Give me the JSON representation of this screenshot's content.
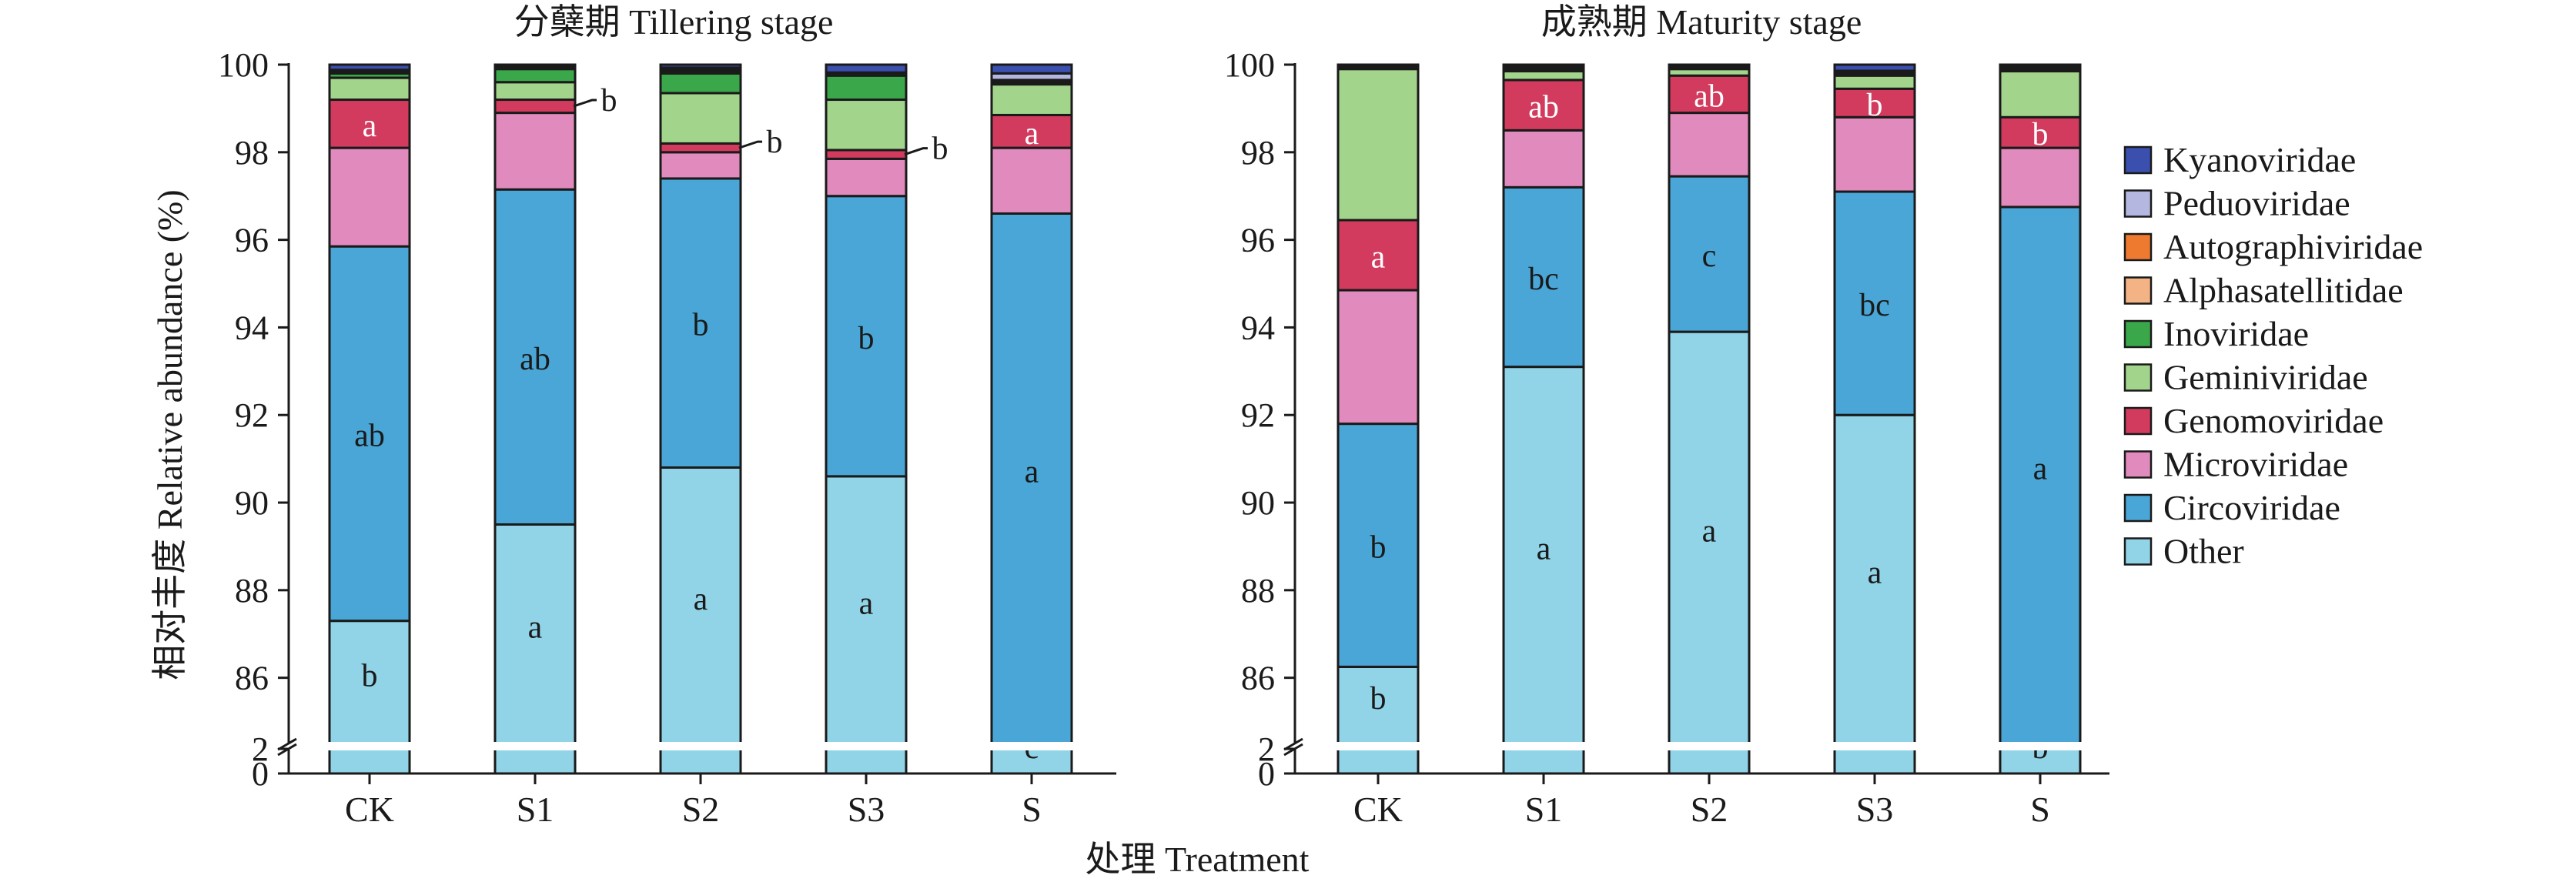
{
  "colors": {
    "Other": "#91d4e8",
    "Circoviridae": "#49a6d6",
    "Microviridae": "#e18abd",
    "Genomoviridae": "#d23a5e",
    "Geminiviridae": "#a2d48c",
    "Inoviridae": "#3aa84a",
    "Alphasatellitidae": "#f4b384",
    "Autographiviridae": "#ee7a30",
    "Peduoviridae": "#b4b7e0",
    "Kyanoviridae": "#3a4fae"
  },
  "legend": [
    "Kyanoviridae",
    "Peduoviridae",
    "Autographiviridae",
    "Alphasatellitidae",
    "Inoviridae",
    "Geminiviridae",
    "Genomoviridae",
    "Microviridae",
    "Circoviridae",
    "Other"
  ],
  "chart_data": [
    {
      "type": "bar",
      "stacked": true,
      "title": "分蘖期 Tillering stage",
      "ylabel": "相对丰度 Relative abundance (%)",
      "xlabel": "处理 Treatment",
      "ylim": [
        0,
        100
      ],
      "axis_break": [
        2,
        84.5
      ],
      "yticks": [
        0,
        2,
        86,
        88,
        90,
        92,
        94,
        96,
        98,
        100
      ],
      "categories": [
        "CK",
        "S1",
        "S2",
        "S3",
        "S"
      ],
      "series": [
        {
          "name": "Other",
          "values": [
            87.3,
            89.5,
            90.8,
            90.6,
            2.6
          ],
          "labels": [
            "b",
            "a",
            "a",
            "a",
            "c"
          ]
        },
        {
          "name": "Circoviridae",
          "values": [
            8.55,
            7.65,
            6.6,
            6.4,
            94.0
          ],
          "labels": [
            "ab",
            "ab",
            "b",
            "b",
            "a"
          ]
        },
        {
          "name": "Microviridae",
          "values": [
            2.25,
            1.75,
            0.6,
            0.85,
            1.5
          ],
          "labels": [
            "",
            "",
            "",
            "",
            ""
          ]
        },
        {
          "name": "Genomoviridae",
          "values": [
            1.1,
            0.3,
            0.2,
            0.2,
            0.75
          ],
          "labels": [
            "a",
            "b",
            "b",
            "b",
            "a"
          ]
        },
        {
          "name": "Geminiviridae",
          "values": [
            0.5,
            0.4,
            1.15,
            1.15,
            0.7
          ],
          "labels": [
            "",
            "",
            "",
            "",
            ""
          ]
        },
        {
          "name": "Inoviridae",
          "values": [
            0.1,
            0.3,
            0.45,
            0.55,
            0.05
          ],
          "labels": [
            "",
            "",
            "",
            "",
            ""
          ]
        },
        {
          "name": "Alphasatellitidae",
          "values": [
            0.03,
            0.03,
            0.05,
            0.03,
            0.03
          ],
          "labels": [
            "",
            "",
            "",
            "",
            ""
          ]
        },
        {
          "name": "Autographiviridae",
          "values": [
            0.03,
            0.02,
            0.05,
            0.02,
            0.02
          ],
          "labels": [
            "",
            "",
            "",
            "",
            ""
          ]
        },
        {
          "name": "Peduoviridae",
          "values": [
            0.02,
            0.02,
            0.03,
            0.02,
            0.15
          ],
          "labels": [
            "",
            "",
            "",
            "",
            ""
          ]
        },
        {
          "name": "Kyanoviridae",
          "values": [
            0.12,
            0.03,
            0.07,
            0.18,
            0.2
          ],
          "labels": [
            "",
            "",
            "",
            "",
            ""
          ]
        }
      ]
    },
    {
      "type": "bar",
      "stacked": true,
      "title": "成熟期 Maturity stage",
      "xlabel": "处理 Treatment",
      "ylim": [
        0,
        100
      ],
      "axis_break": [
        2,
        84.5
      ],
      "yticks": [
        0,
        2,
        86,
        88,
        90,
        92,
        94,
        96,
        98,
        100
      ],
      "categories": [
        "CK",
        "S1",
        "S2",
        "S3",
        "S"
      ],
      "series": [
        {
          "name": "Other",
          "values": [
            86.25,
            93.1,
            93.9,
            92.0,
            2.8
          ],
          "labels": [
            "b",
            "a",
            "a",
            "a",
            "b"
          ]
        },
        {
          "name": "Circoviridae",
          "values": [
            5.55,
            4.1,
            3.55,
            5.1,
            93.95
          ],
          "labels": [
            "b",
            "bc",
            "c",
            "bc",
            "a"
          ]
        },
        {
          "name": "Microviridae",
          "values": [
            3.05,
            1.3,
            1.45,
            1.7,
            1.35
          ],
          "labels": [
            "",
            "",
            "",
            "",
            ""
          ]
        },
        {
          "name": "Genomoviridae",
          "values": [
            1.6,
            1.15,
            0.85,
            0.65,
            0.7
          ],
          "labels": [
            "a",
            "ab",
            "ab",
            "b",
            "b"
          ]
        },
        {
          "name": "Geminiviridae",
          "values": [
            3.45,
            0.2,
            0.15,
            0.3,
            1.05
          ],
          "labels": [
            "",
            "",
            "",
            "",
            ""
          ]
        },
        {
          "name": "Inoviridae",
          "values": [
            0.02,
            0.02,
            0.02,
            0.05,
            0.02
          ],
          "labels": [
            "",
            "",
            "",
            "",
            ""
          ]
        },
        {
          "name": "Alphasatellitidae",
          "values": [
            0.02,
            0.03,
            0.02,
            0.02,
            0.02
          ],
          "labels": [
            "",
            "",
            "",
            "",
            ""
          ]
        },
        {
          "name": "Autographiviridae",
          "values": [
            0.02,
            0.03,
            0.02,
            0.02,
            0.02
          ],
          "labels": [
            "",
            "",
            "",
            "",
            ""
          ]
        },
        {
          "name": "Peduoviridae",
          "values": [
            0.02,
            0.04,
            0.02,
            0.02,
            0.04
          ],
          "labels": [
            "",
            "",
            "",
            "",
            ""
          ]
        },
        {
          "name": "Kyanoviridae",
          "values": [
            0.02,
            0.03,
            0.02,
            0.14,
            0.05
          ],
          "labels": [
            "",
            "",
            "",
            "",
            ""
          ]
        }
      ]
    }
  ]
}
